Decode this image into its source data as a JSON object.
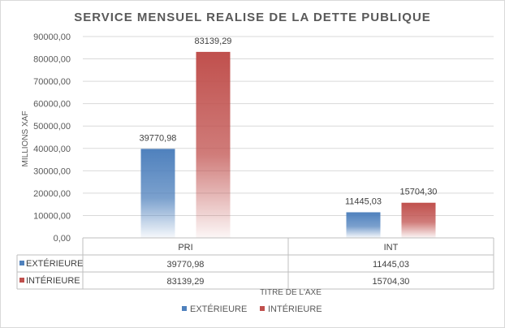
{
  "chart_data": {
    "type": "bar",
    "title": "SERVICE MENSUEL REALISE DE LA DETTE PUBLIQUE",
    "ylabel": "MILLIONS XAF",
    "xlabel": "TITRE DE L'AXE",
    "categories": [
      "PRI",
      "INT"
    ],
    "series": [
      {
        "name": "EXTÉRIEURE",
        "values": [
          39770.98,
          11445.03
        ],
        "labels": [
          "39770,98",
          "11445,03"
        ],
        "color": "#4f81bd"
      },
      {
        "name": "INTÉRIEURE",
        "values": [
          83139.29,
          15704.3
        ],
        "labels": [
          "83139,29",
          "15704,30"
        ],
        "color": "#c0504d"
      }
    ],
    "ylim": [
      0,
      90000
    ],
    "yticks": [
      "0,00",
      "10000,00",
      "20000,00",
      "30000,00",
      "40000,00",
      "50000,00",
      "60000,00",
      "70000,00",
      "80000,00",
      "90000,00"
    ],
    "grid": true,
    "legend_position": "bottom",
    "data_table": true
  }
}
